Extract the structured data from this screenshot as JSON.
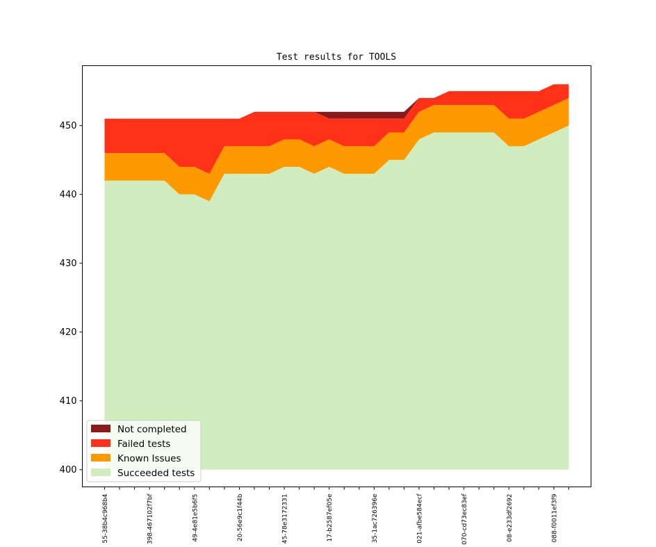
{
  "chart_data": {
    "type": "area",
    "title": "Test results for TOOLS",
    "xlabel": "",
    "ylabel": "",
    "ylim": [
      397.5,
      458.7
    ],
    "yticks": [
      400,
      410,
      420,
      430,
      440,
      450
    ],
    "grid": false,
    "legend_placement": "lower-left",
    "x_tick_labels": [
      "55-38b4c968b4",
      "398-467102f7bf",
      "49-4e81e5b6f5",
      "20-56e9c1f44b",
      "45-78e3172331",
      "17-b2587ef05e",
      "35-1ac726396e",
      "021-afbe584ecf",
      "070-cd73ec83ef",
      "08-e233df2692",
      "088-f0011ef3f9"
    ],
    "series": [
      {
        "name": "Succeeded tests",
        "color": "#cfedbe",
        "values": [
          442,
          442,
          442,
          442,
          442,
          440,
          440,
          439,
          443,
          443,
          443,
          443,
          444,
          444,
          443,
          444,
          443,
          443,
          443,
          445,
          445,
          448,
          449,
          449,
          449,
          449,
          449,
          447,
          447,
          448,
          449,
          450
        ]
      },
      {
        "name": "Known Issues",
        "color": "#ff9900",
        "values": [
          4,
          4,
          4,
          4,
          4,
          4,
          4,
          4,
          4,
          4,
          4,
          4,
          4,
          4,
          4,
          4,
          4,
          4,
          4,
          4,
          4,
          4,
          4,
          4,
          4,
          4,
          4,
          4,
          4,
          4,
          4,
          4
        ]
      },
      {
        "name": "Failed tests",
        "color": "#ff3118",
        "values": [
          5,
          5,
          5,
          5,
          5,
          7,
          7,
          8,
          4,
          4,
          5,
          5,
          4,
          4,
          5,
          3,
          4,
          4,
          4,
          2,
          2,
          2,
          1,
          2,
          2,
          2,
          2,
          4,
          4,
          3,
          3,
          2
        ]
      },
      {
        "name": "Not completed",
        "color": "#8b1a1a",
        "values": [
          0,
          0,
          0,
          0,
          0,
          0,
          0,
          0,
          0,
          0,
          0,
          0,
          0,
          0,
          0,
          1,
          1,
          1,
          1,
          1,
          1,
          0,
          0,
          0,
          0,
          0,
          0,
          0,
          0,
          0,
          0,
          0
        ]
      }
    ]
  }
}
